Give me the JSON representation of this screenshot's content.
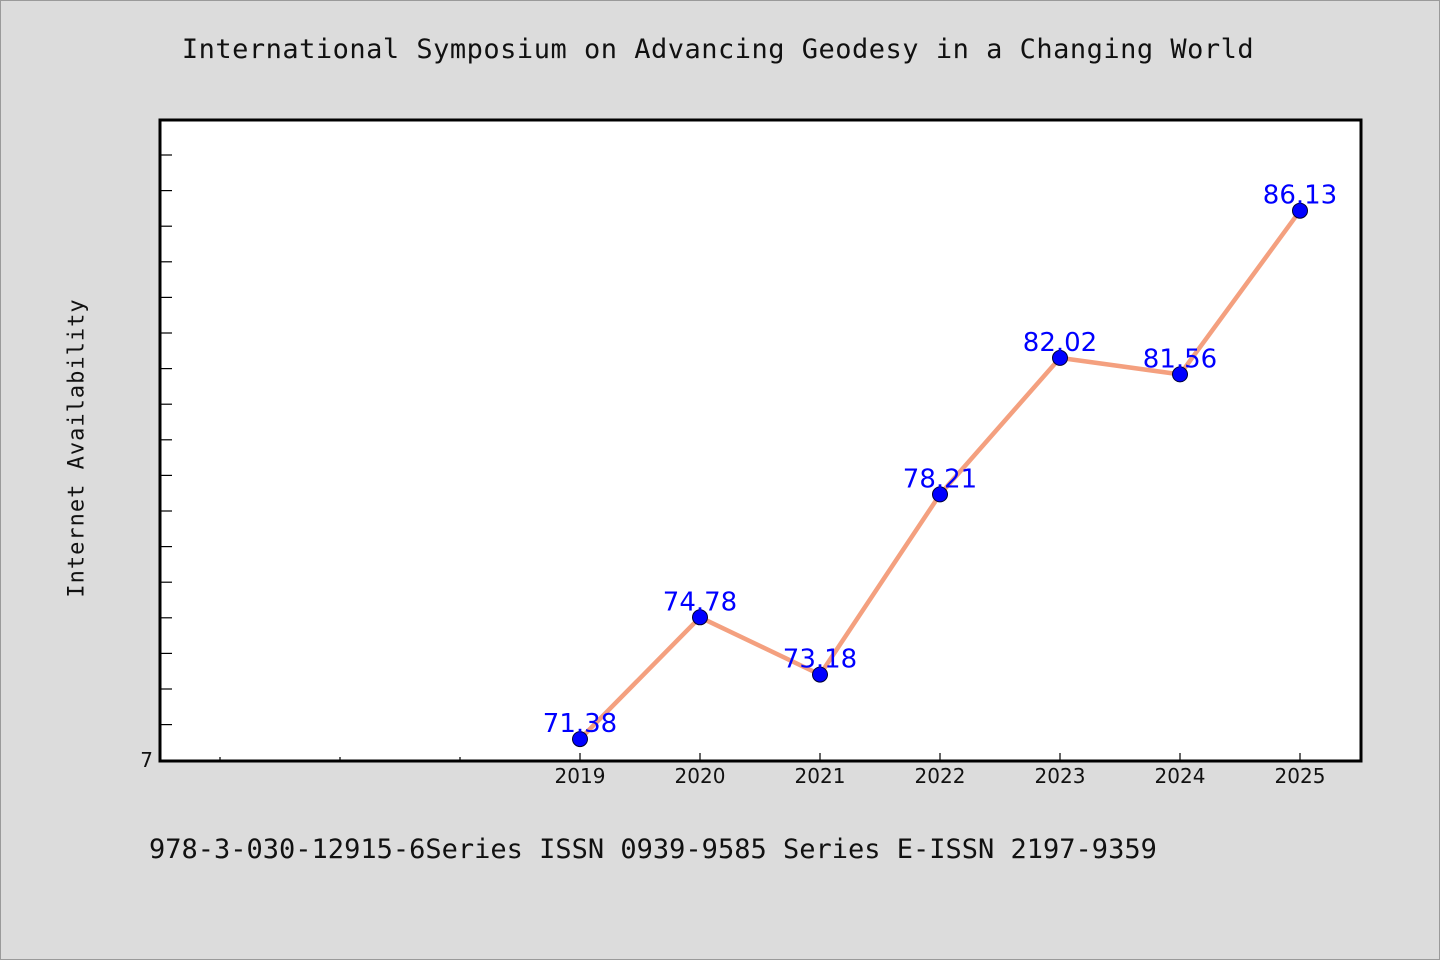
{
  "chart_data": {
    "type": "line",
    "title": "International Symposium on Advancing Geodesy in a Changing World",
    "xlabel": "",
    "ylabel": "Internet Availability",
    "x_tick_labels": [
      "2019",
      "2020",
      "2021",
      "2022",
      "2023",
      "2024",
      "2025"
    ],
    "y_tick_labels": [
      "7"
    ],
    "categories": [
      "2019",
      "2020",
      "2021",
      "2022",
      "2023",
      "2024",
      "2025"
    ],
    "series": [
      {
        "values": [
          71.38,
          74.78,
          73.18,
          78.21,
          82.02,
          81.56,
          86.13
        ],
        "data_labels": [
          "71.38",
          "74.78",
          "73.18",
          "78.21",
          "82.02",
          "81.56",
          "86.13"
        ],
        "line_color": "#f4a07f",
        "marker_color": "#0000ff"
      }
    ],
    "ylim": [
      70.77,
      88.66
    ],
    "legend": "none",
    "grid": false
  },
  "footer": {
    "text": "978-3-030-12915-6Series ISSN 0939-9585 Series E-ISSN 2197-9359"
  },
  "colors": {
    "background": "#dcdcdc",
    "plot_background": "#ffffff",
    "line": "#f4a07f",
    "marker": "#0000ff",
    "data_label": "#0000ff"
  }
}
